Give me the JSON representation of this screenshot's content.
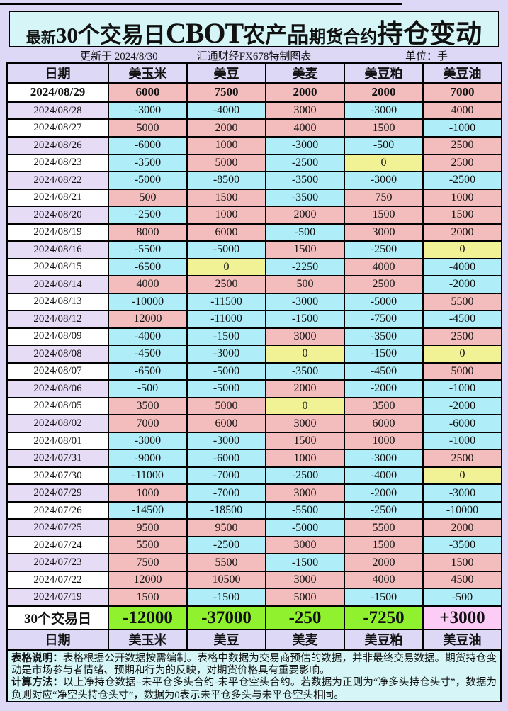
{
  "title": "最新30个交易日CBOT农产品期货合约持仓变动",
  "title_segments": [
    {
      "text": "最新",
      "cls": "t-s"
    },
    {
      "text": "30个交易日",
      "cls": "t-l"
    },
    {
      "text": "CBOT",
      "cls": "t-xl"
    },
    {
      "text": "农产品",
      "cls": "t-l"
    },
    {
      "text": "期货合约",
      "cls": "t-m"
    },
    {
      "text": "持仓变动",
      "cls": "t-xl2"
    }
  ],
  "subheader": {
    "updated": "更新于 2024/8/30",
    "source": "汇通财经FX678特制图表",
    "unit": "单位：手"
  },
  "colors": {
    "page_bg": "#DCD8F6",
    "panel_cyan": "#D5F5F7",
    "header_bg": "#DCD8F6",
    "date_cell": "#FFFFFF",
    "date_alt_cell": "#E7DCF5",
    "positive_cell": "#F3BDBD",
    "negative_cell": "#AFEEF8",
    "zero_cell": "#F1F295",
    "summary_neg": "#90F22E",
    "summary_pos": "#FCCCF7",
    "border": "#000000"
  },
  "chart_data": {
    "type": "table",
    "title": "最新30个交易日CBOT农产品期货合约持仓变动",
    "unit": "手",
    "columns": [
      "日期",
      "美玉米",
      "美豆",
      "美麦",
      "美豆粕",
      "美豆油"
    ],
    "rows": [
      {
        "date": "2024/08/29",
        "values": [
          6000,
          7500,
          2000,
          2000,
          7000
        ]
      },
      {
        "date": "2024/08/28",
        "values": [
          -3000,
          -4000,
          3000,
          -3000,
          4000
        ]
      },
      {
        "date": "2024/08/27",
        "values": [
          5000,
          2000,
          4000,
          1500,
          -1000
        ]
      },
      {
        "date": "2024/08/26",
        "values": [
          -6000,
          1000,
          -3000,
          -500,
          2500
        ]
      },
      {
        "date": "2024/08/23",
        "values": [
          -3500,
          5000,
          -2500,
          0,
          2500
        ]
      },
      {
        "date": "2024/08/22",
        "values": [
          -5000,
          -8500,
          -3500,
          -3000,
          -2500
        ]
      },
      {
        "date": "2024/08/21",
        "values": [
          500,
          1500,
          -3500,
          750,
          1000
        ]
      },
      {
        "date": "2024/08/20",
        "values": [
          -2500,
          1000,
          2000,
          1500,
          1500
        ]
      },
      {
        "date": "2024/08/19",
        "values": [
          8000,
          6000,
          -500,
          3000,
          2000
        ]
      },
      {
        "date": "2024/08/16",
        "values": [
          -5500,
          -5000,
          1500,
          -2500,
          0
        ]
      },
      {
        "date": "2024/08/15",
        "values": [
          -6500,
          0,
          -2250,
          4000,
          -4000
        ]
      },
      {
        "date": "2024/08/14",
        "values": [
          4000,
          2500,
          500,
          2500,
          -2000
        ]
      },
      {
        "date": "2024/08/13",
        "values": [
          -10000,
          -11500,
          -3000,
          -5000,
          5500
        ]
      },
      {
        "date": "2024/08/12",
        "values": [
          12000,
          -11000,
          -1500,
          -7500,
          -4500
        ]
      },
      {
        "date": "2024/08/09",
        "values": [
          -4000,
          -1500,
          3000,
          -3500,
          2500
        ]
      },
      {
        "date": "2024/08/08",
        "values": [
          -4500,
          -3000,
          0,
          -1500,
          0
        ]
      },
      {
        "date": "2024/08/07",
        "values": [
          -6500,
          -5000,
          -3500,
          -4500,
          5000
        ]
      },
      {
        "date": "2024/08/06",
        "values": [
          -500,
          -5000,
          2000,
          -2000,
          -1000
        ]
      },
      {
        "date": "2024/08/05",
        "values": [
          3500,
          5000,
          0,
          3500,
          -2000
        ]
      },
      {
        "date": "2024/08/02",
        "values": [
          7000,
          6000,
          3000,
          6000,
          -6000
        ]
      },
      {
        "date": "2024/08/01",
        "values": [
          -3000,
          -3000,
          1500,
          1000,
          -1000
        ]
      },
      {
        "date": "2024/07/31",
        "values": [
          -9000,
          -6000,
          1000,
          -3000,
          2500
        ]
      },
      {
        "date": "2024/07/30",
        "values": [
          -11000,
          -7000,
          -2500,
          -4000,
          0
        ]
      },
      {
        "date": "2024/07/29",
        "values": [
          1000,
          -7000,
          3000,
          -2000,
          -3000
        ]
      },
      {
        "date": "2024/07/26",
        "values": [
          -14500,
          -18500,
          -5500,
          -2500,
          -10000
        ]
      },
      {
        "date": "2024/07/25",
        "values": [
          9500,
          9500,
          -5000,
          5500,
          2000
        ]
      },
      {
        "date": "2024/07/24",
        "values": [
          5500,
          -2500,
          3000,
          1500,
          -3500
        ]
      },
      {
        "date": "2024/07/23",
        "values": [
          7500,
          5500,
          -1500,
          2000,
          1500
        ]
      },
      {
        "date": "2024/07/22",
        "values": [
          12000,
          10500,
          3000,
          4000,
          4500
        ]
      },
      {
        "date": "2024/07/19",
        "values": [
          1500,
          -1500,
          5000,
          -1500,
          -500
        ]
      }
    ],
    "summary": {
      "label": "30个交易日",
      "values": [
        "-12000",
        "-37000",
        "-250",
        "-7250",
        "+3000"
      ]
    },
    "legend": {
      "positive": "pink",
      "negative": "cyan",
      "zero": "yellow"
    }
  },
  "notes": {
    "p1_label": "表格说明：",
    "p1_text": "表格根据公开数据按需编制。表格中数据为交易商预估的数据，并非最终交易数据。期货持仓变动是市场参与者情绪、预期和行为的反映，对期货价格具有重要影响。",
    "p2_label": "计算方法：",
    "p2_text": "以上净持仓数据=未平仓多头合约-未平仓空头合约。若数据为正则为“净多头持仓头寸”，数据为负则对应“净空头持仓头寸”，数据为0表示未平仓多头与未平仓空头相同。"
  }
}
